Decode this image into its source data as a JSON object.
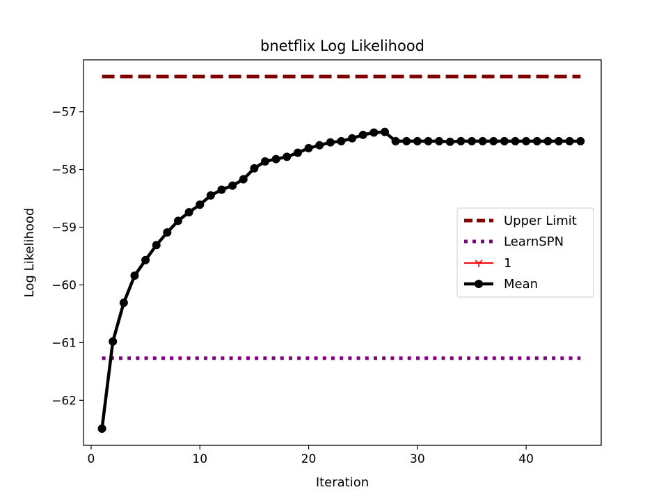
{
  "chart_data": {
    "type": "line",
    "title": "bnetflix Log Likelihood",
    "xlabel": "Iteration",
    "ylabel": "Log Likelihood",
    "xlim": [
      -0.7,
      46.9
    ],
    "ylim": [
      -62.78,
      -56.1
    ],
    "xticks": [
      0,
      10,
      20,
      30,
      40
    ],
    "yticks": [
      -57,
      -58,
      -59,
      -60,
      -61,
      -62
    ],
    "xtick_labels": [
      "0",
      "10",
      "20",
      "30",
      "40"
    ],
    "ytick_labels": [
      "−57",
      "−58",
      "−59",
      "−60",
      "−61",
      "−62"
    ],
    "grid": false,
    "legend_position": "center-right",
    "series": [
      {
        "name": "Upper Limit",
        "color": "#800000",
        "style": "dashed",
        "x": [
          1,
          45
        ],
        "y": [
          -56.39,
          -56.39
        ]
      },
      {
        "name": "LearnSPN",
        "color": "#800080",
        "style": "dotted",
        "x": [
          1,
          45
        ],
        "y": [
          -61.27,
          -61.27
        ]
      },
      {
        "name": "1",
        "color": "#ff0000",
        "style": "solid-marker-tri",
        "x": [],
        "y": []
      },
      {
        "name": "Mean",
        "color": "#000000",
        "style": "solid-marker-circle",
        "x": [
          1,
          2,
          3,
          4,
          5,
          6,
          7,
          8,
          9,
          10,
          11,
          12,
          13,
          14,
          15,
          16,
          17,
          18,
          19,
          20,
          21,
          22,
          23,
          24,
          25,
          26,
          27,
          28,
          29,
          30,
          31,
          32,
          33,
          34,
          35,
          36,
          37,
          38,
          39,
          40,
          41,
          42,
          43,
          44,
          45
        ],
        "y": [
          -62.49,
          -60.98,
          -60.31,
          -59.84,
          -59.57,
          -59.31,
          -59.09,
          -58.89,
          -58.74,
          -58.61,
          -58.45,
          -58.35,
          -58.28,
          -58.17,
          -57.98,
          -57.86,
          -57.82,
          -57.78,
          -57.71,
          -57.63,
          -57.58,
          -57.53,
          -57.51,
          -57.46,
          -57.4,
          -57.36,
          -57.35,
          -57.51,
          -57.51,
          -57.51,
          -57.51,
          -57.51,
          -57.52,
          -57.51,
          -57.51,
          -57.51,
          -57.51,
          -57.51,
          -57.51,
          -57.51,
          -57.51,
          -57.51,
          -57.51,
          -57.51,
          -57.51
        ]
      }
    ]
  }
}
